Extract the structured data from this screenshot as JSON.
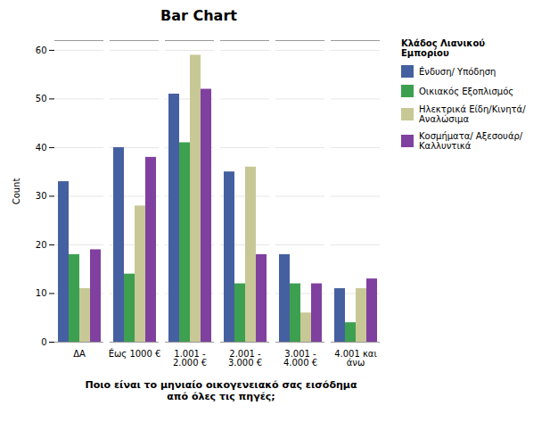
{
  "chart_data": {
    "type": "bar",
    "title": "Bar Chart",
    "xlabel": "Ποιο είναι το μηνιαίο οικογενειακό σας εισόδημα\nαπό όλες τις πηγές;",
    "ylabel": "Count",
    "categories": [
      "ΔΑ",
      "Éως 1000 €",
      "1.001 -\n2.000 €",
      "2.001 -\n3.000 €",
      "3.001 -\n4.000 €",
      "4.001 και\nάνω"
    ],
    "series": [
      {
        "name": "Éνδυση/ Υπόδηση",
        "color": "#4560a0",
        "values": [
          33,
          40,
          51,
          35,
          18,
          11
        ]
      },
      {
        "name": "Οικιακός Εξοπλισμός",
        "color": "#3da050",
        "values": [
          18,
          14,
          41,
          12,
          12,
          4
        ]
      },
      {
        "name": "Ηλεκτρικά Είδη/Κινητά/\nΑναλώσιμα",
        "color": "#c8c896",
        "values": [
          11,
          28,
          59,
          36,
          6,
          11
        ]
      },
      {
        "name": "Κοσμήματα/ Αξεσουάρ/\nΚαλλυντικά",
        "color": "#8040a0",
        "values": [
          19,
          38,
          52,
          18,
          12,
          13
        ]
      }
    ],
    "legend_title": "Κλάδος Λιανικού\nΕμπορίου",
    "legend": "right",
    "ylim": [
      0,
      62
    ],
    "yticks": [
      0,
      10,
      20,
      30,
      40,
      50,
      60
    ],
    "grid": true
  }
}
